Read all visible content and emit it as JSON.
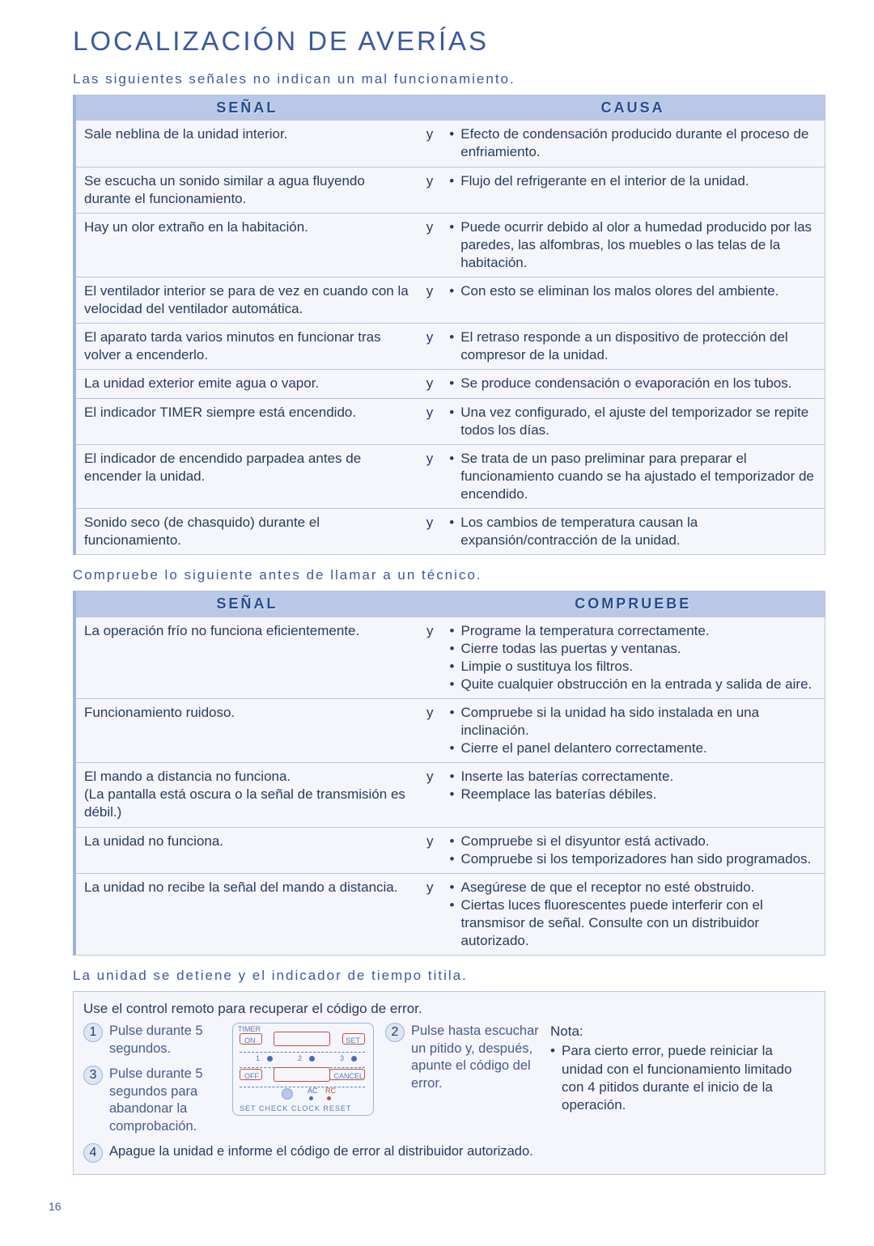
{
  "page": {
    "title": "LOCALIZACIÓN DE AVERÍAS",
    "pagenum": "16"
  },
  "colors": {
    "title": "#3a5a9e",
    "header_bg": "#b8c8e6",
    "box_bg": "#f4f6fb",
    "border": "#b8c4dc",
    "text": "#2a3a5e",
    "y": "#d07030"
  },
  "section1": {
    "subtitle": "Las siguientes señales no indican un mal funcionamiento.",
    "headers": {
      "left": "SEÑAL",
      "right": "CAUSA"
    },
    "rows": [
      {
        "signal": "Sale neblina de la unidad interior.",
        "y": "y",
        "cause": [
          "Efecto de condensación producido durante el proceso de enfriamiento."
        ]
      },
      {
        "signal": "Se escucha un sonido similar a agua fluyendo durante el funcionamiento.",
        "y": "y",
        "cause": [
          "Flujo del refrigerante en el interior de la unidad."
        ]
      },
      {
        "signal": "Hay un olor extraño en la habitación.",
        "y": "y",
        "cause": [
          "Puede ocurrir debido al olor a humedad producido por las paredes, las alfombras, los muebles o las telas de la habitación."
        ]
      },
      {
        "signal": "El ventilador interior se para de vez en cuando con la velocidad del ventilador automática.",
        "y": "y",
        "cause": [
          "Con esto se eliminan los malos olores del ambiente."
        ]
      },
      {
        "signal": "El aparato tarda varios minutos en funcionar tras volver a encenderlo.",
        "y": "y",
        "cause": [
          "El retraso responde a un dispositivo de protección del compresor de la unidad."
        ]
      },
      {
        "signal": "La unidad exterior emite agua o vapor.",
        "y": "y",
        "cause": [
          "Se produce condensación o evaporación en los tubos."
        ]
      },
      {
        "signal": "El indicador TIMER siempre está encendido.",
        "y": "y",
        "cause": [
          "Una vez configurado, el ajuste del temporizador se repite todos los días."
        ]
      },
      {
        "signal": "El indicador de encendido parpadea antes de encender la unidad.",
        "y": "y",
        "cause": [
          "Se trata de un paso preliminar para preparar el funcionamiento cuando se ha ajustado el temporizador de encendido."
        ]
      },
      {
        "signal": "Sonido seco (de chasquido) durante el funcionamiento.",
        "y": "y",
        "cause": [
          "Los cambios de temperatura causan la expansión/contracción de la unidad."
        ]
      }
    ]
  },
  "section2": {
    "subtitle": "Compruebe lo siguiente antes de llamar a un técnico.",
    "headers": {
      "left": "SEÑAL",
      "right": "COMPRUEBE"
    },
    "rows": [
      {
        "signal": "La operación frío no funciona eficientemente.",
        "y": "y",
        "cause": [
          "Programe la temperatura correctamente.",
          "Cierre todas las puertas y ventanas.",
          "Limpie o sustituya los filtros.",
          "Quite cualquier obstrucción en la entrada y salida de aire."
        ]
      },
      {
        "signal": "Funcionamiento ruidoso.",
        "y": "y",
        "cause": [
          "Compruebe si la unidad ha sido instalada en una inclinación.",
          "Cierre el panel delantero correctamente."
        ]
      },
      {
        "signal": "El mando a distancia no funciona.\n(La pantalla está oscura o la señal de transmisión es débil.)",
        "y": "y",
        "cause": [
          "Inserte las baterías correctamente.",
          "Reemplace las baterías débiles."
        ]
      },
      {
        "signal": "La unidad no funciona.",
        "y": "y",
        "cause": [
          "Compruebe si el disyuntor está activado.",
          "Compruebe si los temporizadores han sido programados."
        ]
      },
      {
        "signal": "La unidad no recibe la señal del mando a distancia.",
        "y": "y",
        "cause": [
          "Asegúrese de que el receptor no esté obstruido.",
          "Ciertas luces fluorescentes puede interferir con el transmisor de señal. Consulte con un distribuidor autorizado."
        ]
      }
    ]
  },
  "section3": {
    "subtitle": "La unidad se detiene y el indicador de tiempo titila.",
    "intro": "Use el control remoto para recuperar el código de error.",
    "steps": {
      "1": "Pulse durante 5 segundos.",
      "2": "Pulse hasta escuchar un pitido y, después, apunte el código del error.",
      "3": "Pulse durante 5 segundos para abandonar la comprobación.",
      "4": "Apague la unidad e informe el código de error al distribuidor autorizado."
    },
    "note_title": "Nota:",
    "note_items": [
      "Para cierto error, puede reiniciar la unidad con el funcionamiento limitado con 4 pitidos durante el inicio de la operación."
    ],
    "remote_labels": {
      "timer": "TIMER",
      "on": "ON",
      "set": "SET",
      "off": "OFF",
      "cancel": "CANCEL",
      "n1": "1",
      "n2": "2",
      "n3": "3",
      "ac": "AC",
      "rc": "RC",
      "bottom": "SET  CHECK  CLOCK      RESET"
    }
  }
}
